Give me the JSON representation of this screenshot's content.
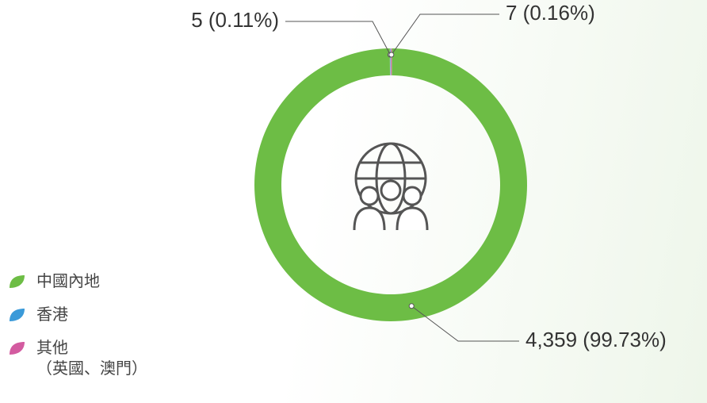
{
  "chart_data": {
    "type": "donut",
    "categories": [
      "中國內地",
      "香港",
      "其他\n（英國、澳門）"
    ],
    "values": [
      4359,
      5,
      7
    ],
    "value_labels": [
      "4,359 (99.73%)",
      "5 (0.11%)",
      "7 (0.16%)"
    ],
    "colors": [
      "#6dbd45",
      "#3a9ad9",
      "#d35ba0"
    ]
  }
}
